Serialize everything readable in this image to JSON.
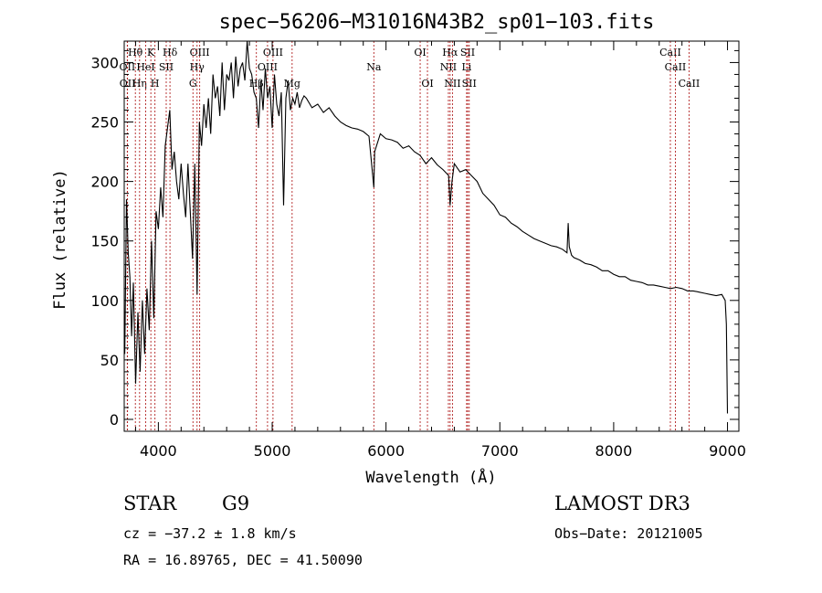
{
  "chart_data": {
    "type": "line",
    "title": "spec−56206−M31016N43B2_sp01−103.fits",
    "xlabel": "Wavelength (Å)",
    "ylabel": "Flux (relative)",
    "xlim": [
      3700,
      9100
    ],
    "ylim": [
      -10,
      318
    ],
    "xticks": [
      4000,
      5000,
      6000,
      7000,
      8000,
      9000
    ],
    "yticks": [
      0,
      50,
      100,
      150,
      200,
      250,
      300
    ],
    "line_color": "#000000",
    "marker_color": "#b22222",
    "series": [
      {
        "name": "flux",
        "x": [
          3705,
          3720,
          3735,
          3750,
          3765,
          3780,
          3800,
          3820,
          3840,
          3860,
          3880,
          3900,
          3920,
          3940,
          3960,
          3980,
          4000,
          4020,
          4040,
          4060,
          4080,
          4100,
          4120,
          4140,
          4160,
          4180,
          4200,
          4220,
          4240,
          4260,
          4280,
          4300,
          4320,
          4340,
          4360,
          4380,
          4400,
          4420,
          4440,
          4460,
          4480,
          4500,
          4520,
          4540,
          4560,
          4580,
          4600,
          4620,
          4640,
          4660,
          4680,
          4700,
          4720,
          4740,
          4760,
          4780,
          4800,
          4820,
          4840,
          4860,
          4880,
          4900,
          4920,
          4940,
          4960,
          4980,
          5000,
          5020,
          5040,
          5060,
          5080,
          5100,
          5120,
          5140,
          5160,
          5180,
          5200,
          5220,
          5240,
          5260,
          5280,
          5300,
          5350,
          5400,
          5450,
          5500,
          5550,
          5600,
          5650,
          5700,
          5750,
          5800,
          5850,
          5893,
          5900,
          5950,
          6000,
          6050,
          6100,
          6150,
          6200,
          6250,
          6300,
          6350,
          6400,
          6450,
          6500,
          6550,
          6563,
          6580,
          6600,
          6650,
          6700,
          6750,
          6800,
          6850,
          6900,
          6950,
          7000,
          7050,
          7100,
          7150,
          7200,
          7250,
          7300,
          7350,
          7400,
          7450,
          7500,
          7550,
          7590,
          7600,
          7610,
          7630,
          7650,
          7700,
          7750,
          7800,
          7850,
          7900,
          7950,
          8000,
          8050,
          8100,
          8150,
          8200,
          8250,
          8300,
          8350,
          8400,
          8450,
          8500,
          8550,
          8600,
          8650,
          8700,
          8750,
          8800,
          8850,
          8900,
          8950,
          8980,
          8990,
          9000
        ],
        "y": [
          55,
          185,
          140,
          120,
          70,
          115,
          30,
          90,
          40,
          100,
          55,
          110,
          75,
          150,
          85,
          175,
          160,
          195,
          170,
          230,
          245,
          260,
          210,
          225,
          200,
          185,
          215,
          190,
          170,
          215,
          175,
          135,
          215,
          105,
          250,
          230,
          265,
          245,
          270,
          240,
          290,
          270,
          280,
          255,
          300,
          260,
          290,
          285,
          300,
          270,
          305,
          280,
          295,
          300,
          285,
          320,
          295,
          290,
          275,
          270,
          245,
          285,
          260,
          295,
          270,
          280,
          245,
          290,
          265,
          255,
          275,
          180,
          270,
          285,
          260,
          270,
          265,
          275,
          262,
          268,
          272,
          270,
          262,
          265,
          258,
          262,
          255,
          250,
          247,
          245,
          244,
          242,
          238,
          195,
          225,
          240,
          236,
          235,
          233,
          228,
          230,
          225,
          222,
          215,
          220,
          214,
          210,
          205,
          180,
          200,
          215,
          208,
          210,
          205,
          200,
          190,
          185,
          180,
          172,
          170,
          165,
          162,
          158,
          155,
          152,
          150,
          148,
          146,
          145,
          143,
          140,
          165,
          145,
          138,
          136,
          134,
          131,
          130,
          128,
          125,
          125,
          122,
          120,
          120,
          117,
          116,
          115,
          113,
          113,
          112,
          111,
          110,
          111,
          110,
          108,
          108,
          107,
          106,
          105,
          104,
          105,
          100,
          80,
          5
        ]
      }
    ],
    "line_markers": [
      {
        "label": "Hθ",
        "wavelength": 3798,
        "row": 1
      },
      {
        "label": "OII",
        "wavelength": 3727,
        "row": 2
      },
      {
        "label": "OII",
        "wavelength": 3729,
        "row": 3
      },
      {
        "label": "Hη",
        "wavelength": 3835,
        "row": 3
      },
      {
        "label": "HeI",
        "wavelength": 3889,
        "row": 2
      },
      {
        "label": "K",
        "wavelength": 3934,
        "row": 1
      },
      {
        "label": "SII",
        "wavelength": 4069,
        "row": 2
      },
      {
        "label": "H",
        "wavelength": 3970,
        "row": 3
      },
      {
        "label": "Hδ",
        "wavelength": 4102,
        "row": 1
      },
      {
        "label": "OIII",
        "wavelength": 4363,
        "row": 1
      },
      {
        "label": "Hγ",
        "wavelength": 4340,
        "row": 2
      },
      {
        "label": "G",
        "wavelength": 4304,
        "row": 3
      },
      {
        "label": "Hβ",
        "wavelength": 4861,
        "row": 3
      },
      {
        "label": "OIII",
        "wavelength": 5007,
        "row": 1
      },
      {
        "label": "OIII",
        "wavelength": 4959,
        "row": 2
      },
      {
        "label": "Mg",
        "wavelength": 5175,
        "row": 3
      },
      {
        "label": "Na",
        "wavelength": 5893,
        "row": 2
      },
      {
        "label": "OI",
        "wavelength": 6300,
        "row": 1
      },
      {
        "label": "OI",
        "wavelength": 6364,
        "row": 3
      },
      {
        "label": "Hα",
        "wavelength": 6563,
        "row": 1
      },
      {
        "label": "SII",
        "wavelength": 6717,
        "row": 1
      },
      {
        "label": "NII",
        "wavelength": 6548,
        "row": 2
      },
      {
        "label": "Li",
        "wavelength": 6708,
        "row": 2
      },
      {
        "label": "NII",
        "wavelength": 6584,
        "row": 3
      },
      {
        "label": "SII",
        "wavelength": 6731,
        "row": 3
      },
      {
        "label": "CaII",
        "wavelength": 8498,
        "row": 1
      },
      {
        "label": "CaII",
        "wavelength": 8542,
        "row": 2
      },
      {
        "label": "CaII",
        "wavelength": 8662,
        "row": 3
      }
    ]
  },
  "info": {
    "class": "STAR",
    "subclass": "G9",
    "survey": "LAMOST DR3",
    "cz": "cz = −37.2 ± 1.8 km/s",
    "obs_date": "Obs−Date: 20121005",
    "radec": "RA =  16.89765, DEC =  41.50090"
  }
}
